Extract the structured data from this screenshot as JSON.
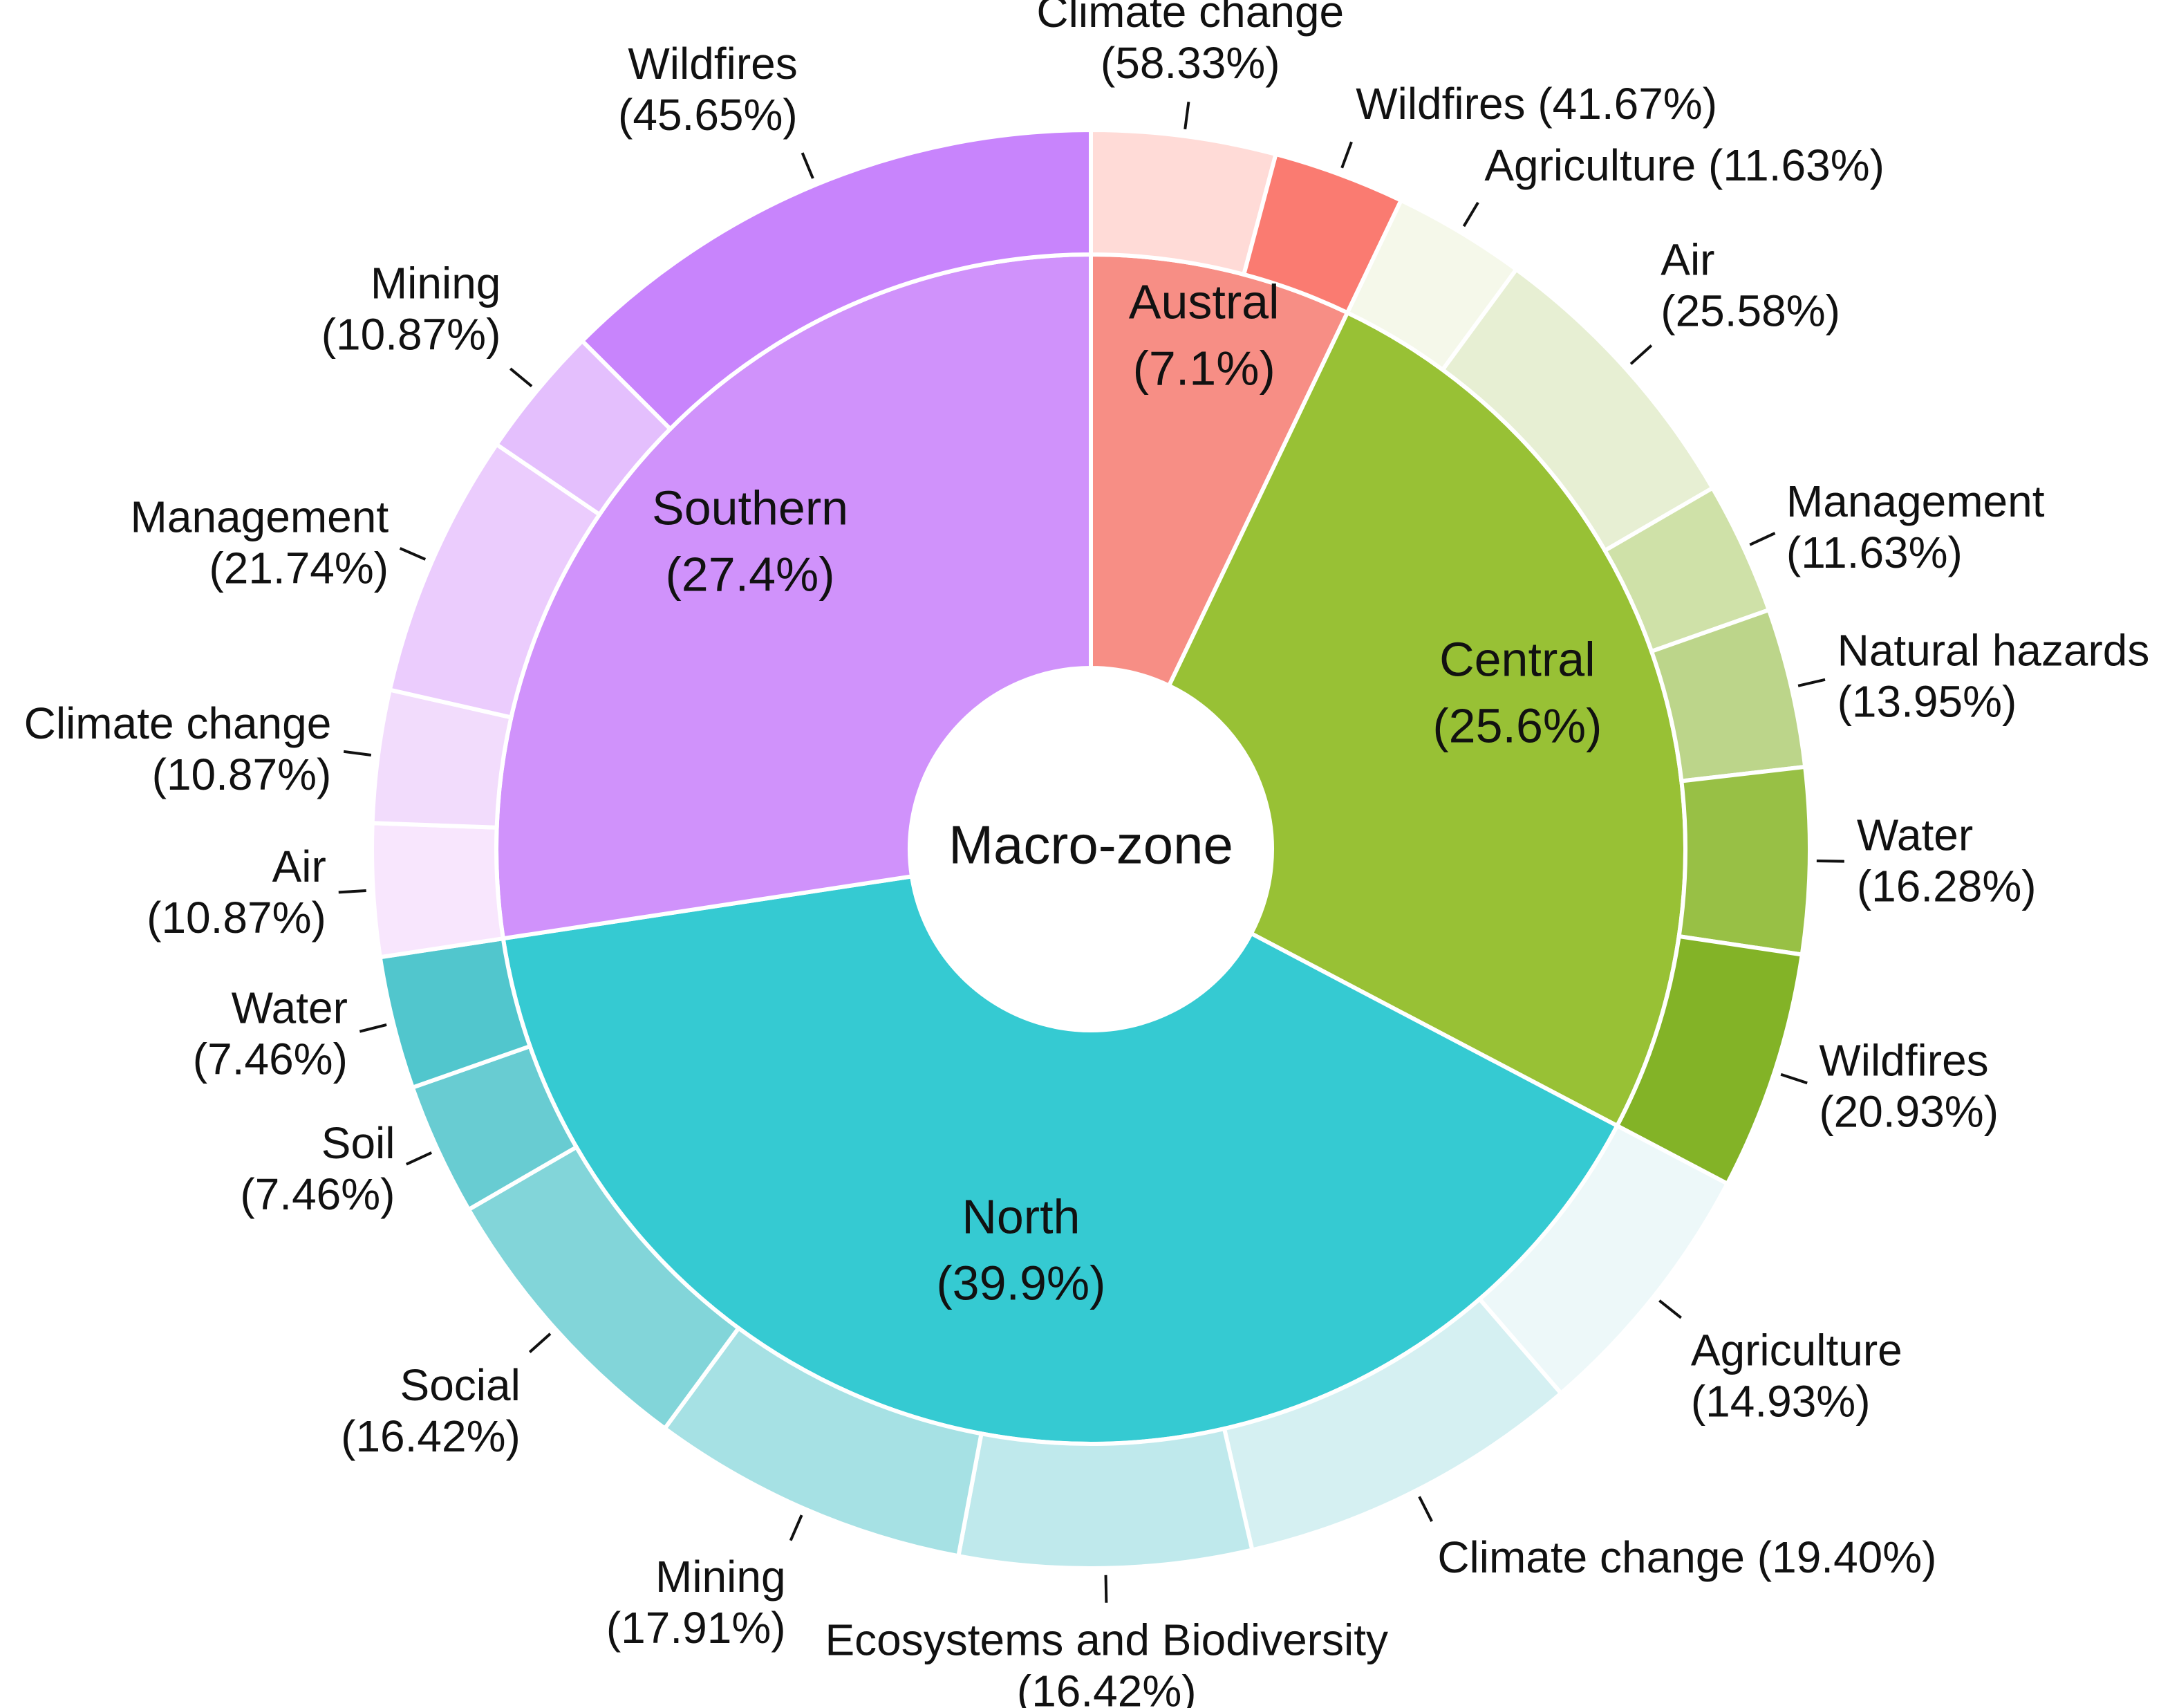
{
  "chart_data": {
    "type": "pie",
    "subtype": "sunburst",
    "center_label": "Macro-zone",
    "start_angle_deg": 0,
    "direction": "clockwise",
    "inner_ring": [
      {
        "name": "Austral",
        "value_label": "(7.1%)",
        "value": 7.1,
        "color": "#f78e85"
      },
      {
        "name": "Central",
        "value_label": "(25.6%)",
        "value": 25.6,
        "color": "#98c135"
      },
      {
        "name": "North",
        "value_label": "(39.9%)",
        "value": 39.9,
        "color": "#35cad2"
      },
      {
        "name": "Southern",
        "value_label": "(27.4%)",
        "value": 27.4,
        "color": "#d092fb"
      }
    ],
    "outer_ring": [
      {
        "parent": "Austral",
        "categories": [
          {
            "name": "Climate change",
            "percent": 58.33,
            "lines": [
              "Climate change",
              "(58.33%)"
            ],
            "color": "#ffdbd7"
          },
          {
            "name": "Wildfires",
            "percent": 41.67,
            "lines": [
              "Wildfires (41.67%)"
            ],
            "color": "#fa7b71"
          }
        ]
      },
      {
        "parent": "Central",
        "categories": [
          {
            "name": "Agriculture",
            "percent": 11.63,
            "lines": [
              "Agriculture (11.63%)"
            ],
            "color": "#f5f8ea"
          },
          {
            "name": "Air",
            "percent": 25.58,
            "lines": [
              "Air",
              "(25.58%)"
            ],
            "color": "#e7efd3"
          },
          {
            "name": "Management",
            "percent": 11.63,
            "lines": [
              "Management",
              "(11.63%)"
            ],
            "color": "#cfe1a8"
          },
          {
            "name": "Natural hazards",
            "percent": 13.95,
            "lines": [
              "Natural hazards",
              "(13.95%)"
            ],
            "color": "#bcd58a"
          },
          {
            "name": "Water",
            "percent": 16.28,
            "lines": [
              "Water",
              "(16.28%)"
            ],
            "color": "#98c045"
          },
          {
            "name": "Wildfires",
            "percent": 20.93,
            "lines": [
              "Wildfires",
              "(20.93%)"
            ],
            "color": "#83b327"
          }
        ]
      },
      {
        "parent": "North",
        "categories": [
          {
            "name": "Agriculture",
            "percent": 14.93,
            "lines": [
              "Agriculture",
              "(14.93%)"
            ],
            "color": "#edf8f9"
          },
          {
            "name": "Climate change",
            "percent": 19.4,
            "lines": [
              "Climate change (19.40%)"
            ],
            "color": "#d5f0f2"
          },
          {
            "name": "Ecosystems and Biodiversity",
            "percent": 16.42,
            "lines": [
              "Ecosystems and Biodiversity",
              "(16.42%)"
            ],
            "color": "#bfe9ec"
          },
          {
            "name": "Mining",
            "percent": 17.91,
            "lines": [
              "Mining",
              "(17.91%)"
            ],
            "color": "#a6e1e4"
          },
          {
            "name": "Social",
            "percent": 16.42,
            "lines": [
              "Social",
              "(16.42%)"
            ],
            "color": "#82d5d9"
          },
          {
            "name": "Soil",
            "percent": 7.46,
            "lines": [
              "Soil",
              "(7.46%)"
            ],
            "color": "#68ccd2"
          },
          {
            "name": "Water",
            "percent": 7.46,
            "lines": [
              "Water",
              "(7.46%)"
            ],
            "color": "#51c6cd"
          }
        ]
      },
      {
        "parent": "Southern",
        "categories": [
          {
            "name": "Air",
            "percent": 10.87,
            "lines": [
              "Air",
              "(10.87%)"
            ],
            "color": "#f8e6fd"
          },
          {
            "name": "Climate change",
            "percent": 10.87,
            "lines": [
              "Climate change",
              "(10.87%)"
            ],
            "color": "#f2dcfc"
          },
          {
            "name": "Management",
            "percent": 21.74,
            "lines": [
              "Management",
              "(21.74%)"
            ],
            "color": "#ebccfd"
          },
          {
            "name": "Mining",
            "percent": 10.87,
            "lines": [
              "Mining",
              "(10.87%)"
            ],
            "color": "#e4bffd"
          },
          {
            "name": "Wildfires",
            "percent": 45.65,
            "lines": [
              "Wildfires",
              "(45.65%)"
            ],
            "color": "#c884fc"
          }
        ]
      }
    ]
  }
}
